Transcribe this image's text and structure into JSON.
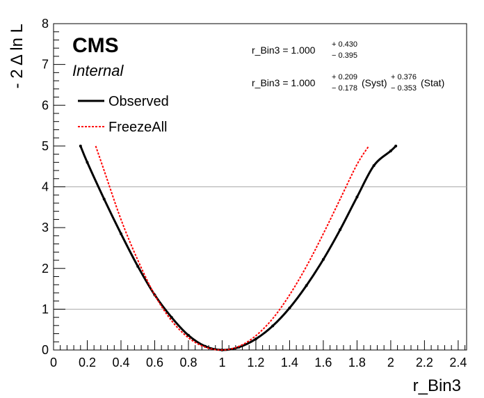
{
  "chart_data": {
    "type": "line",
    "xlabel": "r_Bin3",
    "ylabel": "- 2 Δ ln L",
    "xlim": [
      0,
      2.45
    ],
    "ylim": [
      0,
      8
    ],
    "x_ticks": [
      "0",
      "0.2",
      "0.4",
      "0.6",
      "0.8",
      "1",
      "1.2",
      "1.4",
      "1.6",
      "1.8",
      "2",
      "2.2",
      "2.4"
    ],
    "y_ticks": [
      "0",
      "1",
      "2",
      "3",
      "4",
      "5",
      "6",
      "7",
      "8"
    ],
    "hlines": [
      1,
      4
    ],
    "grid": false,
    "legend_position": "top-left",
    "labels": {
      "experiment": "CMS",
      "status": "Internal"
    },
    "annotations": {
      "total": {
        "lhs": "r_Bin3 = 1.000",
        "up": "+ 0.430",
        "down": "− 0.395"
      },
      "breakdown": {
        "lhs": "r_Bin3 = 1.000",
        "syst_up": "+ 0.209",
        "syst_down": "− 0.178",
        "syst_label": "(Syst)",
        "stat_up": "+ 0.376",
        "stat_down": "− 0.353",
        "stat_label": "(Stat)"
      }
    },
    "series": [
      {
        "name": "Observed",
        "color": "#000000",
        "style": "solid",
        "x": [
          0.16,
          0.2,
          0.3,
          0.4,
          0.5,
          0.6,
          0.7,
          0.8,
          0.9,
          1.0,
          1.1,
          1.2,
          1.3,
          1.4,
          1.5,
          1.6,
          1.7,
          1.8,
          1.9,
          2.0,
          2.03
        ],
        "y": [
          5.0,
          4.6,
          3.7,
          2.85,
          2.05,
          1.35,
          0.8,
          0.36,
          0.09,
          0.0,
          0.07,
          0.27,
          0.59,
          1.03,
          1.58,
          2.22,
          2.95,
          3.75,
          4.52,
          4.88,
          5.0
        ]
      },
      {
        "name": "FreezeAll",
        "color": "#ff0000",
        "style": "dashed",
        "x": [
          0.25,
          0.3,
          0.4,
          0.5,
          0.6,
          0.7,
          0.8,
          0.9,
          1.0,
          1.1,
          1.2,
          1.3,
          1.4,
          1.5,
          1.6,
          1.7,
          1.8,
          1.87
        ],
        "y": [
          5.0,
          4.4,
          3.2,
          2.2,
          1.35,
          0.72,
          0.3,
          0.07,
          0.0,
          0.09,
          0.35,
          0.77,
          1.35,
          2.05,
          2.85,
          3.7,
          4.55,
          5.0
        ]
      }
    ]
  }
}
